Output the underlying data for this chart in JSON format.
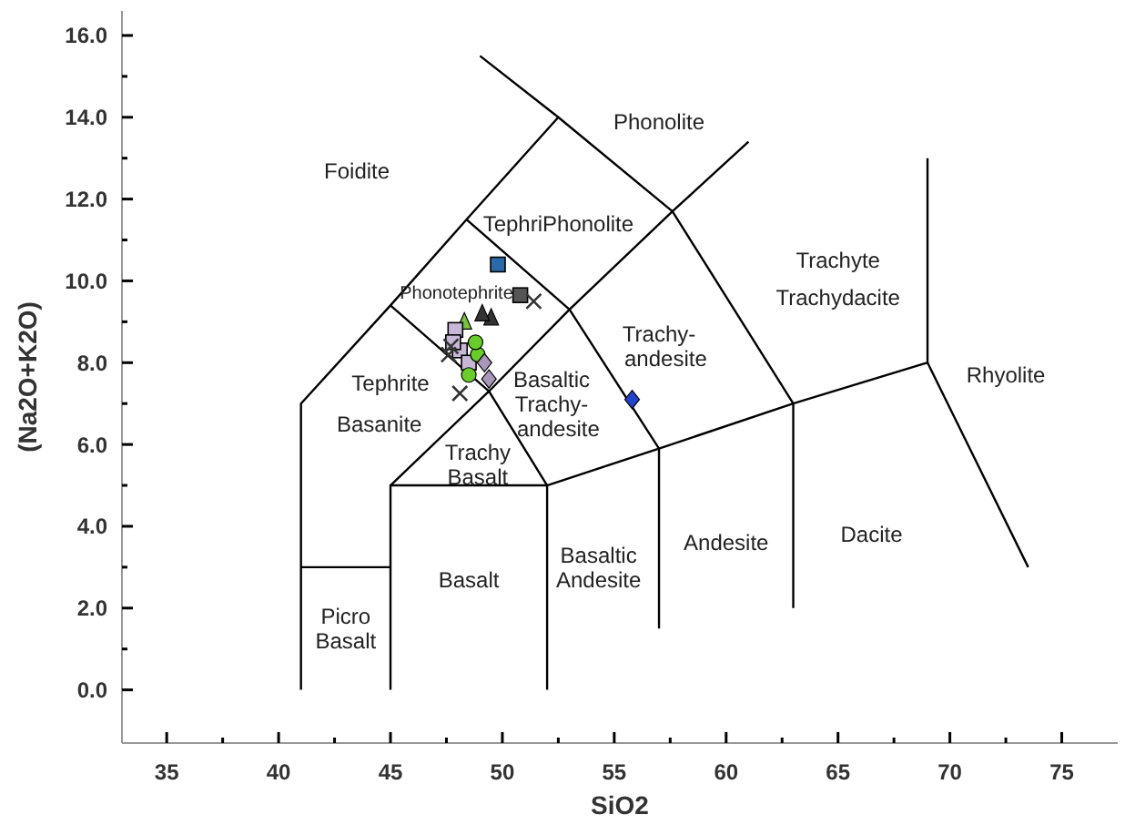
{
  "chart_data": {
    "type": "scatter",
    "xlabel": "SiO2",
    "ylabel": "(Na2O+K2O)",
    "xlim": [
      33,
      77.5
    ],
    "ylim": [
      -1.3,
      16.6
    ],
    "xticks": [
      35,
      {
        "value": 37.5,
        "label": null
      },
      40,
      {
        "value": 42.5,
        "label": null
      },
      45,
      {
        "value": 47.5,
        "label": null
      },
      50,
      {
        "value": 52.5,
        "label": null
      },
      55,
      {
        "value": 57.5,
        "label": null
      },
      60,
      {
        "value": 62.5,
        "label": null
      },
      65,
      {
        "value": 67.5,
        "label": null
      },
      70,
      {
        "value": 72.5,
        "label": null
      },
      75
    ],
    "yticks": [
      {
        "value": 0,
        "label": "0.0"
      },
      {
        "value": 1,
        "label": null
      },
      {
        "value": 2,
        "label": "2.0"
      },
      {
        "value": 3,
        "label": null
      },
      {
        "value": 4,
        "label": "4.0"
      },
      {
        "value": 5,
        "label": null
      },
      {
        "value": 6,
        "label": "6.0"
      },
      {
        "value": 7,
        "label": null
      },
      {
        "value": 8,
        "label": "8.0"
      },
      {
        "value": 9,
        "label": null
      },
      {
        "value": 10,
        "label": "10.0"
      },
      {
        "value": 11,
        "label": null
      },
      {
        "value": 12,
        "label": "12.0"
      },
      {
        "value": 13,
        "label": null
      },
      {
        "value": 14,
        "label": "14.0"
      },
      {
        "value": 15,
        "label": null
      },
      {
        "value": 16,
        "label": "16.0"
      }
    ],
    "grid": false,
    "series": [
      {
        "type": "line",
        "color": "#000000",
        "marker": "none",
        "x": [
          41,
          41,
          45,
          48.4,
          52.5
        ],
        "values": [
          0,
          7,
          9.4,
          11.5,
          14
        ]
      },
      {
        "type": "line",
        "color": "#000000",
        "marker": "none",
        "x": [
          41,
          45
        ],
        "values": [
          3,
          3
        ]
      },
      {
        "type": "line",
        "color": "#000000",
        "marker": "none",
        "x": [
          45,
          45,
          52,
          52
        ],
        "values": [
          0,
          5,
          5,
          0
        ]
      },
      {
        "type": "line",
        "color": "#000000",
        "marker": "none",
        "x": [
          52,
          57,
          63,
          69,
          69
        ],
        "values": [
          5,
          5.9,
          7,
          8,
          13
        ]
      },
      {
        "type": "line",
        "color": "#000000",
        "marker": "none",
        "x": [
          69,
          73.5
        ],
        "values": [
          8,
          3
        ]
      },
      {
        "type": "line",
        "color": "#000000",
        "marker": "none",
        "x": [
          57,
          57
        ],
        "values": [
          1.5,
          5.9
        ]
      },
      {
        "type": "line",
        "color": "#000000",
        "marker": "none",
        "x": [
          63,
          63
        ],
        "values": [
          2,
          7
        ]
      },
      {
        "type": "line",
        "color": "#000000",
        "marker": "none",
        "x": [
          45,
          49.4,
          53,
          57.6,
          61
        ],
        "values": [
          5,
          7.3,
          9.3,
          11.7,
          13.4
        ]
      },
      {
        "type": "line",
        "color": "#000000",
        "marker": "none",
        "x": [
          52,
          49.4,
          45
        ],
        "values": [
          5,
          7.3,
          9.4
        ]
      },
      {
        "type": "line",
        "color": "#000000",
        "marker": "none",
        "x": [
          57,
          53,
          48.4
        ],
        "values": [
          5.9,
          9.3,
          11.5
        ]
      },
      {
        "type": "line",
        "color": "#000000",
        "marker": "none",
        "x": [
          63,
          57.6,
          52.5,
          49
        ],
        "values": [
          7,
          11.7,
          14,
          15.5
        ]
      },
      {
        "color": "#2a6aa8",
        "marker": "square",
        "x": [
          49.8
        ],
        "values": [
          10.4
        ]
      },
      {
        "color": "#555555",
        "marker": "square",
        "x": [
          50.8
        ],
        "values": [
          9.65
        ]
      },
      {
        "color": "#333333",
        "marker": "triangle",
        "x": [
          49.5,
          49.1
        ],
        "values": [
          9.1,
          9.2
        ]
      },
      {
        "color": "#7ac142",
        "marker": "triangle",
        "x": [
          48.3
        ],
        "values": [
          9.0
        ]
      },
      {
        "color": "#c8b8d8",
        "marker": "square",
        "x": [
          47.9,
          48.1,
          48.5,
          47.8
        ],
        "values": [
          8.8,
          8.3,
          8.0,
          8.5
        ]
      },
      {
        "color": "#6acc2a",
        "marker": "circle",
        "x": [
          48.5,
          48.9,
          48.8
        ],
        "values": [
          7.7,
          8.2,
          8.5
        ]
      },
      {
        "color": "#a898b8",
        "marker": "diamond",
        "x": [
          49.4,
          49.2
        ],
        "values": [
          7.6,
          8.0
        ]
      },
      {
        "color": "#2244cc",
        "marker": "diamond",
        "x": [
          55.8
        ],
        "values": [
          7.1
        ]
      },
      {
        "color": "#333333",
        "marker": "cross",
        "x": [
          51.4,
          48.1,
          47.7,
          47.6
        ],
        "values": [
          9.5,
          7.25,
          8.4,
          8.2
        ]
      }
    ],
    "annotations": [
      "Foidite",
      "Phonolite",
      "TephriPhonolite",
      "Phonotephrite",
      "Tephrite",
      "Basanite",
      "Trachy",
      "Basalt",
      "Basaltic",
      "Trachy-",
      "andesite",
      "Trachy-",
      "andesite",
      "Trachyte",
      "Trachydacite",
      "Rhyolite",
      "Basalt",
      "Picro",
      "Basalt",
      "Basaltic",
      "Andesite",
      "Andesite",
      "Dacite"
    ]
  }
}
